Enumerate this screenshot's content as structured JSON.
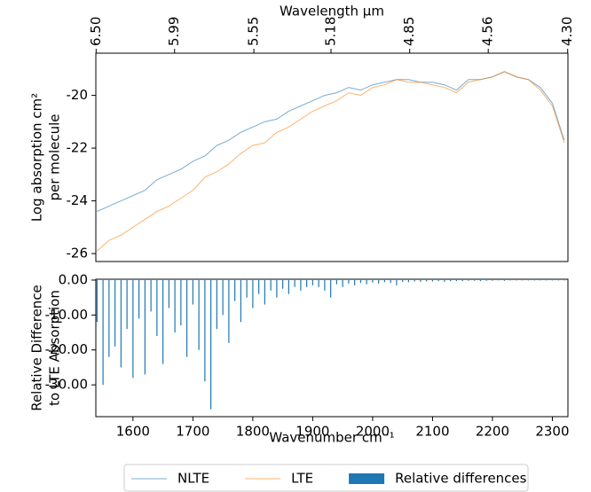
{
  "chart_data": [
    {
      "type": "line",
      "x2label": "Wavelength μm",
      "ylabel": [
        "Log absorption cm²",
        "per molecule"
      ],
      "xlim": [
        1538,
        2326
      ],
      "x2scale": "reciprocal",
      "x2ticks": [
        {
          "value": 6.5,
          "label": "6.50"
        },
        5.99,
        5.55,
        5.18,
        4.85,
        4.56,
        {
          "value": 4.3,
          "label": "4.30"
        }
      ],
      "ylim": [
        -26.3,
        -18.4
      ],
      "yticks": [
        -26,
        -24,
        -22,
        -20
      ],
      "x": [
        1540,
        1560,
        1580,
        1600,
        1620,
        1640,
        1660,
        1680,
        1700,
        1720,
        1740,
        1760,
        1780,
        1800,
        1820,
        1840,
        1860,
        1880,
        1900,
        1920,
        1940,
        1960,
        1980,
        2000,
        2020,
        2040,
        2060,
        2080,
        2100,
        2120,
        2140,
        2160,
        2180,
        2200,
        2220,
        2240,
        2260,
        2280,
        2300,
        2320
      ],
      "series": [
        {
          "name": "NLTE",
          "color": "#1f77b4",
          "values": [
            -24.4,
            -24.2,
            -24.0,
            -23.8,
            -23.6,
            -23.2,
            -23.0,
            -22.8,
            -22.5,
            -22.3,
            -21.9,
            -21.7,
            -21.4,
            -21.2,
            -21.0,
            -20.9,
            -20.6,
            -20.4,
            -20.2,
            -20.0,
            -19.9,
            -19.7,
            -19.8,
            -19.6,
            -19.5,
            -19.4,
            -19.4,
            -19.5,
            -19.5,
            -19.6,
            -19.8,
            -19.4,
            -19.4,
            -19.3,
            -19.1,
            -19.3,
            -19.4,
            -19.7,
            -20.3,
            -21.7
          ]
        },
        {
          "name": "LTE",
          "color": "#ff7f0e",
          "values": [
            -25.9,
            -25.5,
            -25.3,
            -25.0,
            -24.7,
            -24.4,
            -24.2,
            -23.9,
            -23.6,
            -23.1,
            -22.9,
            -22.6,
            -22.2,
            -21.9,
            -21.8,
            -21.4,
            -21.2,
            -20.9,
            -20.6,
            -20.4,
            -20.2,
            -19.9,
            -20.0,
            -19.7,
            -19.6,
            -19.4,
            -19.5,
            -19.5,
            -19.6,
            -19.7,
            -19.9,
            -19.5,
            -19.4,
            -19.3,
            -19.1,
            -19.3,
            -19.4,
            -19.8,
            -20.4,
            -21.8
          ]
        }
      ]
    },
    {
      "type": "bar",
      "xlabel": "Wavenumber cm⁻¹",
      "ylabel": [
        "Relative Difference",
        "to LTE Absorption"
      ],
      "xlim": [
        1538,
        2326
      ],
      "xticks": [
        1600,
        1700,
        1800,
        1900,
        2000,
        2100,
        2200,
        2300
      ],
      "ylim": [
        -39.1,
        0.24
      ],
      "yticks": [
        {
          "value": 0,
          "label": "0.00"
        },
        {
          "value": -10,
          "label": "-10.00"
        },
        {
          "value": -20,
          "label": "-20.00"
        },
        {
          "value": -30,
          "label": "-30.00"
        }
      ],
      "x": [
        1540,
        1550,
        1560,
        1570,
        1580,
        1590,
        1600,
        1610,
        1620,
        1630,
        1640,
        1650,
        1660,
        1670,
        1680,
        1690,
        1700,
        1710,
        1720,
        1730,
        1740,
        1750,
        1760,
        1770,
        1780,
        1790,
        1800,
        1810,
        1820,
        1830,
        1840,
        1850,
        1860,
        1870,
        1880,
        1890,
        1900,
        1910,
        1920,
        1930,
        1940,
        1950,
        1960,
        1970,
        1980,
        1990,
        2000,
        2010,
        2020,
        2030,
        2040,
        2050,
        2060,
        2070,
        2080,
        2090,
        2100,
        2110,
        2120,
        2130,
        2140,
        2150,
        2160,
        2170,
        2180,
        2190,
        2200,
        2210,
        2220,
        2230,
        2240,
        2250,
        2260,
        2270,
        2280,
        2290,
        2300,
        2310,
        2320
      ],
      "series": [
        {
          "name": "Relative differences",
          "color": "#1f77b4",
          "values": [
            -12,
            -30,
            -22,
            -19,
            -25,
            -14,
            -28,
            -11,
            -27,
            -9,
            -16,
            -24,
            -8,
            -15,
            -13,
            -22,
            -7,
            -20,
            -29,
            -37,
            -14,
            -10,
            -18,
            -6,
            -12,
            -5,
            -8,
            -4,
            -7,
            -3,
            -5,
            -2.5,
            -4,
            -2,
            -3,
            -2,
            -1.5,
            -2,
            -3,
            -5,
            -1.2,
            -2,
            -1,
            -1.5,
            -0.8,
            -1.2,
            -0.7,
            -1,
            -0.6,
            -0.8,
            -1.5,
            -0.5,
            -0.6,
            -0.4,
            -0.5,
            -0.4,
            -0.4,
            -0.3,
            -0.5,
            -0.3,
            -0.3,
            -0.3,
            -0.2,
            -0.2,
            -0.3,
            -0.2,
            -0.2,
            -0.1,
            -0.2,
            -0.1,
            -0.1,
            -0.1,
            -0.1,
            -0.1,
            -0.1,
            -0.1,
            -0.1,
            -0.1,
            -0.1
          ]
        }
      ]
    }
  ]
}
